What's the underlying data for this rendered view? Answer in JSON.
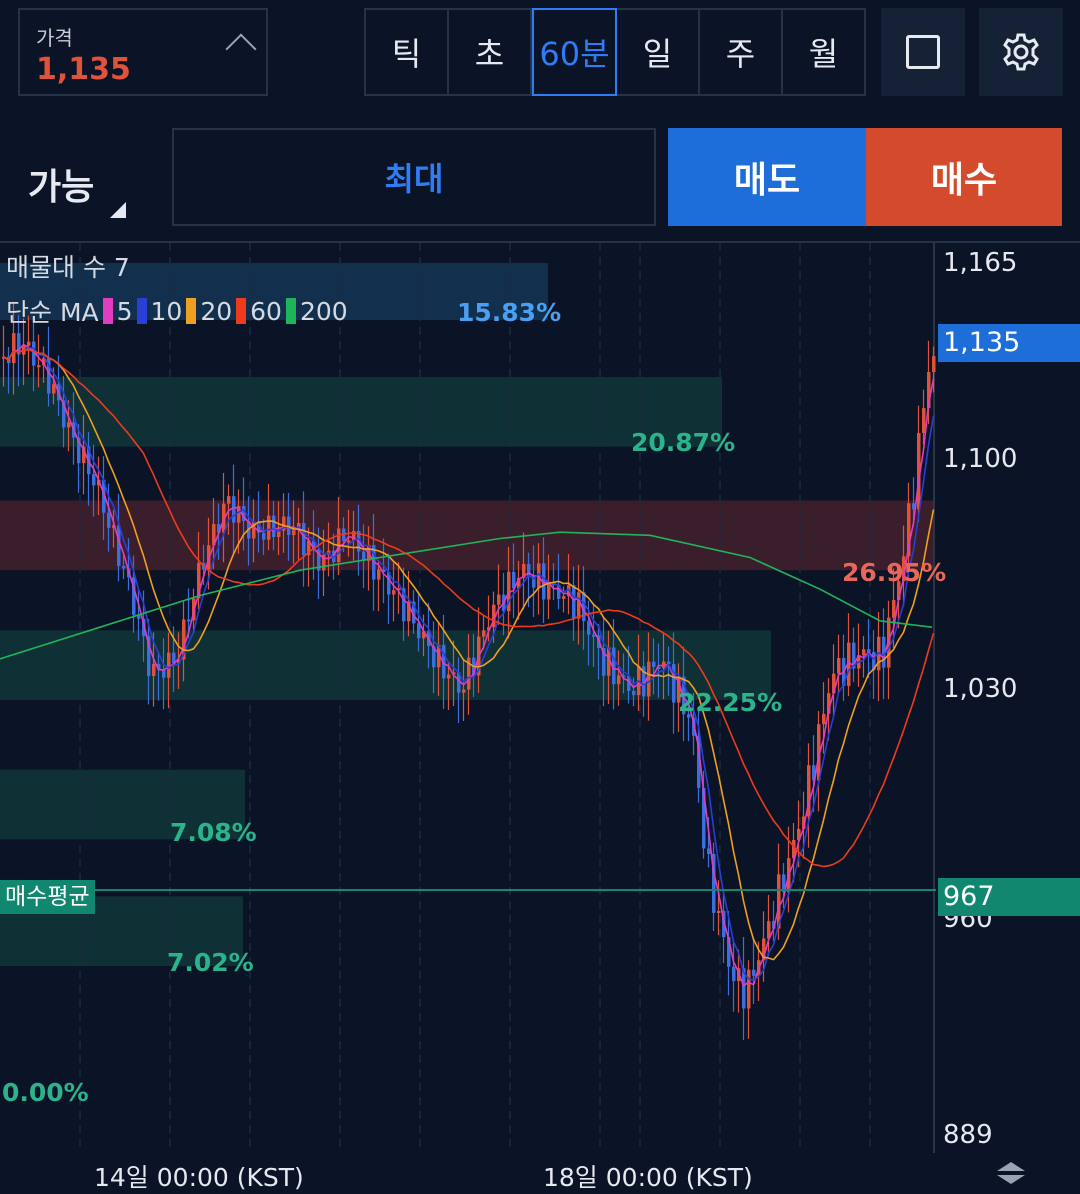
{
  "price": {
    "label": "가격",
    "value": "1,135"
  },
  "timeframes": [
    "틱",
    "초",
    "60분",
    "일",
    "주",
    "월"
  ],
  "active_timeframe": "60분",
  "toolbar": {
    "layout_icon": "square-icon",
    "settings_icon": "gear-icon"
  },
  "order": {
    "available_label": "가능",
    "max_label": "최대",
    "sell_label": "매도",
    "buy_label": "매수"
  },
  "chart_data": {
    "type": "candlestick",
    "volume_profile_label": "매물대 수 7",
    "ma_label": "단순 MA",
    "ma_periods": [
      {
        "name": "5",
        "color": "#e23cc0"
      },
      {
        "name": "10",
        "color": "#2a3fd6"
      },
      {
        "name": "20",
        "color": "#f0a020"
      },
      {
        "name": "60",
        "color": "#ee3b1c"
      },
      {
        "name": "200",
        "color": "#20b45a"
      }
    ],
    "y_ticks": [
      "1,165",
      "1,100",
      "1,030",
      "960",
      "889"
    ],
    "y_tick_values": [
      1165,
      1100,
      1030,
      960,
      889
    ],
    "x_labels": [
      "14일 00:00 (KST)",
      "18일 00:00 (KST)"
    ],
    "current_price_tag": "1,135",
    "current_price": 1135,
    "avg_buy_label": "매수평균",
    "avg_buy_price": "967",
    "volume_profile": [
      {
        "pct": "15.83%",
        "low": 1147,
        "high": 1165
      },
      {
        "pct": "20.87%",
        "low": 1107,
        "high": 1129
      },
      {
        "pct": "26.95%",
        "low": 1068,
        "high": 1090
      },
      {
        "pct": "22.25%",
        "low": 1027,
        "high": 1049
      },
      {
        "pct": "7.08%",
        "low": 983,
        "high": 1005
      },
      {
        "pct": "7.02%",
        "low": 943,
        "high": 965
      },
      {
        "pct": "0.00%",
        "low": 889,
        "high": 905
      }
    ],
    "colors": {
      "up": "#e0533a",
      "down": "#3b6fe0",
      "profile_blue": "#12304d",
      "profile_green": "#0f3035",
      "profile_red": "#3a1e2c"
    }
  }
}
